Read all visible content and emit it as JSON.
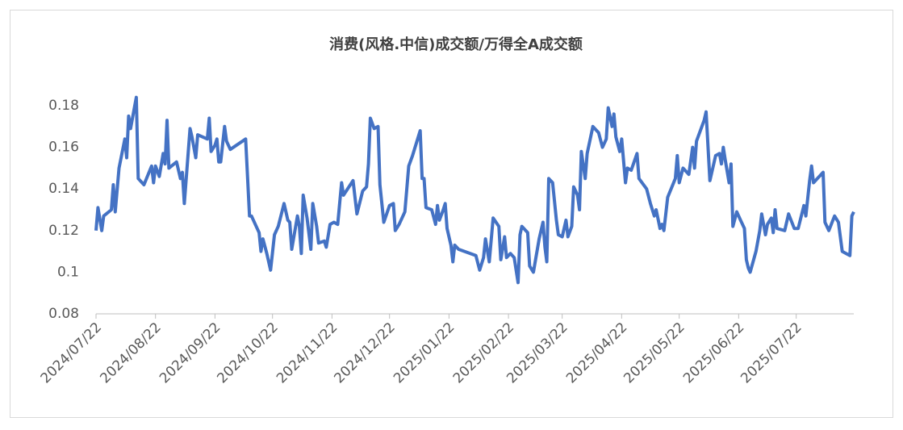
{
  "chart_data": {
    "type": "line",
    "title": "消费(风格.中信)成交额/万得全A成交额",
    "x": [
      "2024/07/22",
      "2024/07/23",
      "2024/07/25",
      "2024/07/26",
      "2024/07/30",
      "2024/07/31",
      "2024/08/01",
      "2024/08/03",
      "2024/08/06",
      "2024/08/07",
      "2024/08/08",
      "2024/08/09",
      "2024/08/12",
      "2024/08/13",
      "2024/08/16",
      "2024/08/20",
      "2024/08/21",
      "2024/08/22",
      "2024/08/24",
      "2024/08/26",
      "2024/08/27",
      "2024/08/28",
      "2024/08/29",
      "2024/09/02",
      "2024/09/04",
      "2024/09/05",
      "2024/09/06",
      "2024/09/09",
      "2024/09/10",
      "2024/09/12",
      "2024/09/13",
      "2024/09/18",
      "2024/09/19",
      "2024/09/20",
      "2024/09/22",
      "2024/09/23",
      "2024/09/24",
      "2024/09/25",
      "2024/09/27",
      "2024/09/28",
      "2024/09/30",
      "2024/10/08",
      "2024/10/10",
      "2024/10/11",
      "2024/10/15",
      "2024/10/16",
      "2024/10/17",
      "2024/10/19",
      "2024/10/21",
      "2024/10/23",
      "2024/10/25",
      "2024/10/28",
      "2024/10/30",
      "2024/10/31",
      "2024/11/01",
      "2024/11/04",
      "2024/11/05",
      "2024/11/06",
      "2024/11/07",
      "2024/11/09",
      "2024/11/11",
      "2024/11/12",
      "2024/11/14",
      "2024/11/15",
      "2024/11/18",
      "2024/11/19",
      "2024/11/21",
      "2024/11/23",
      "2024/11/25",
      "2024/11/27",
      "2024/11/28",
      "2024/12/03",
      "2024/12/05",
      "2024/12/08",
      "2024/12/10",
      "2024/12/11",
      "2024/12/12",
      "2024/12/14",
      "2024/12/16",
      "2024/12/17",
      "2024/12/19",
      "2024/12/22",
      "2024/12/24",
      "2024/12/25",
      "2024/12/27",
      "2024/12/30",
      "2025/01/01",
      "2025/01/03",
      "2025/01/07",
      "2025/01/08",
      "2025/01/09",
      "2025/01/10",
      "2025/01/13",
      "2025/01/15",
      "2025/01/16",
      "2025/01/17",
      "2025/01/19",
      "2025/01/20",
      "2025/01/21",
      "2025/01/23",
      "2025/01/24",
      "2025/01/25",
      "2025/01/27",
      "2025/02/05",
      "2025/02/07",
      "2025/02/09",
      "2025/02/10",
      "2025/02/12",
      "2025/02/14",
      "2025/02/17",
      "2025/02/18",
      "2025/02/20",
      "2025/02/21",
      "2025/02/23",
      "2025/02/25",
      "2025/02/27",
      "2025/02/28",
      "2025/03/01",
      "2025/03/04",
      "2025/03/05",
      "2025/03/07",
      "2025/03/10",
      "2025/03/12",
      "2025/03/13",
      "2025/03/14",
      "2025/03/15",
      "2025/03/17",
      "2025/03/19",
      "2025/03/20",
      "2025/03/22",
      "2025/03/24",
      "2025/03/25",
      "2025/03/27",
      "2025/03/28",
      "2025/03/30",
      "2025/03/31",
      "2025/04/01",
      "2025/04/03",
      "2025/04/04",
      "2025/04/07",
      "2025/04/10",
      "2025/04/12",
      "2025/04/14",
      "2025/04/15",
      "2025/04/17",
      "2025/04/18",
      "2025/04/19",
      "2025/04/21",
      "2025/04/22",
      "2025/04/24",
      "2025/04/25",
      "2025/04/27",
      "2025/04/30",
      "2025/05/01",
      "2025/05/05",
      "2025/05/07",
      "2025/05/09",
      "2025/05/10",
      "2025/05/12",
      "2025/05/13",
      "2025/05/14",
      "2025/05/16",
      "2025/05/20",
      "2025/05/21",
      "2025/05/22",
      "2025/05/24",
      "2025/05/27",
      "2025/05/29",
      "2025/05/30",
      "2025/05/31",
      "2025/06/04",
      "2025/06/05",
      "2025/06/07",
      "2025/06/10",
      "2025/06/12",
      "2025/06/13",
      "2025/06/14",
      "2025/06/15",
      "2025/06/17",
      "2025/06/18",
      "2025/06/19",
      "2025/06/21",
      "2025/06/23",
      "2025/06/25",
      "2025/06/26",
      "2025/06/27",
      "2025/06/28",
      "2025/07/01",
      "2025/07/03",
      "2025/07/04",
      "2025/07/06",
      "2025/07/07",
      "2025/07/09",
      "2025/07/10",
      "2025/07/11",
      "2025/07/12",
      "2025/07/16",
      "2025/07/18",
      "2025/07/21",
      "2025/07/23",
      "2025/07/26",
      "2025/07/27",
      "2025/07/29",
      "2025/07/30",
      "2025/07/31",
      "2025/08/05",
      "2025/08/06",
      "2025/08/08",
      "2025/08/11",
      "2025/08/13",
      "2025/08/15",
      "2025/08/17",
      "2025/08/19",
      "2025/08/20",
      "2025/08/21"
    ],
    "series": [
      {
        "name": "消费(风格.中信)成交额/万得全A成交额",
        "color": "#4472c4",
        "values": [
          0.12,
          0.131,
          0.12,
          0.127,
          0.13,
          0.142,
          0.129,
          0.15,
          0.164,
          0.155,
          0.175,
          0.169,
          0.184,
          0.145,
          0.142,
          0.151,
          0.143,
          0.151,
          0.146,
          0.157,
          0.152,
          0.173,
          0.15,
          0.153,
          0.145,
          0.148,
          0.133,
          0.169,
          0.165,
          0.155,
          0.166,
          0.164,
          0.174,
          0.158,
          0.161,
          0.164,
          0.153,
          0.153,
          0.17,
          0.163,
          0.159,
          0.164,
          0.127,
          0.127,
          0.119,
          0.11,
          0.116,
          0.109,
          0.101,
          0.118,
          0.122,
          0.133,
          0.125,
          0.124,
          0.111,
          0.127,
          0.122,
          0.109,
          0.137,
          0.126,
          0.111,
          0.133,
          0.122,
          0.114,
          0.115,
          0.112,
          0.123,
          0.124,
          0.123,
          0.143,
          0.137,
          0.144,
          0.128,
          0.139,
          0.141,
          0.152,
          0.174,
          0.169,
          0.17,
          0.142,
          0.124,
          0.132,
          0.133,
          0.12,
          0.123,
          0.129,
          0.151,
          0.156,
          0.168,
          0.145,
          0.145,
          0.131,
          0.13,
          0.123,
          0.132,
          0.125,
          0.13,
          0.133,
          0.121,
          0.113,
          0.105,
          0.113,
          0.111,
          0.108,
          0.101,
          0.107,
          0.116,
          0.105,
          0.126,
          0.122,
          0.106,
          0.117,
          0.107,
          0.109,
          0.107,
          0.095,
          0.118,
          0.122,
          0.119,
          0.103,
          0.1,
          0.116,
          0.124,
          0.112,
          0.105,
          0.145,
          0.143,
          0.125,
          0.118,
          0.117,
          0.125,
          0.117,
          0.122,
          0.141,
          0.137,
          0.13,
          0.158,
          0.145,
          0.157,
          0.17,
          0.167,
          0.16,
          0.164,
          0.179,
          0.17,
          0.176,
          0.165,
          0.158,
          0.164,
          0.143,
          0.15,
          0.149,
          0.157,
          0.145,
          0.14,
          0.133,
          0.127,
          0.13,
          0.121,
          0.123,
          0.12,
          0.136,
          0.145,
          0.156,
          0.143,
          0.15,
          0.147,
          0.16,
          0.15,
          0.163,
          0.173,
          0.177,
          0.144,
          0.156,
          0.157,
          0.152,
          0.16,
          0.154,
          0.143,
          0.152,
          0.122,
          0.129,
          0.125,
          0.121,
          0.106,
          0.102,
          0.1,
          0.11,
          0.12,
          0.128,
          0.118,
          0.123,
          0.126,
          0.119,
          0.13,
          0.121,
          0.12,
          0.128,
          0.121,
          0.121,
          0.132,
          0.127,
          0.144,
          0.151,
          0.143,
          0.148,
          0.124,
          0.12,
          0.127,
          0.124,
          0.11,
          0.109,
          0.108,
          0.127,
          0.129
        ]
      }
    ],
    "xlim": [
      "2024/07/22",
      "2025/08/21"
    ],
    "xticks": [
      "2024/07/22",
      "2024/08/22",
      "2024/09/22",
      "2024/10/22",
      "2024/11/22",
      "2024/12/22",
      "2025/01/22",
      "2025/02/22",
      "2025/03/22",
      "2025/04/22",
      "2025/05/22",
      "2025/06/22",
      "2025/07/22"
    ],
    "ylim": [
      0.08,
      0.18
    ],
    "yticks": [
      0.08,
      0.1,
      0.12,
      0.14,
      0.16,
      0.18
    ],
    "grid": false
  }
}
